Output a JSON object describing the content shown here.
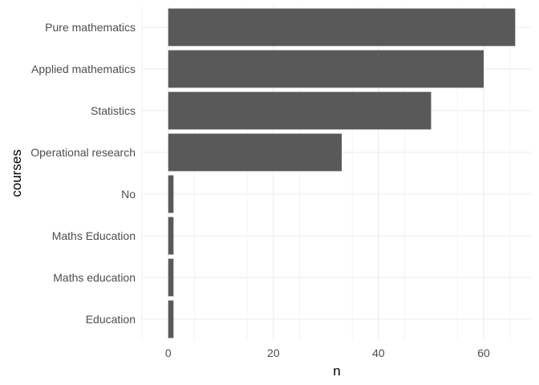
{
  "chart_data": {
    "type": "bar",
    "orientation": "horizontal",
    "categories": [
      "Pure mathematics",
      "Applied mathematics",
      "Statistics",
      "Operational research",
      "No",
      "Maths Education",
      "Maths education",
      "Education"
    ],
    "values": [
      66,
      60,
      50,
      33,
      1,
      1,
      1,
      1
    ],
    "xlabel": "n",
    "ylabel": "courses",
    "xlim": [
      -5,
      69
    ],
    "xticks": [
      0,
      20,
      40,
      60
    ],
    "grid": true,
    "bar_color": "#595959",
    "grid_color": "#ebebeb"
  }
}
